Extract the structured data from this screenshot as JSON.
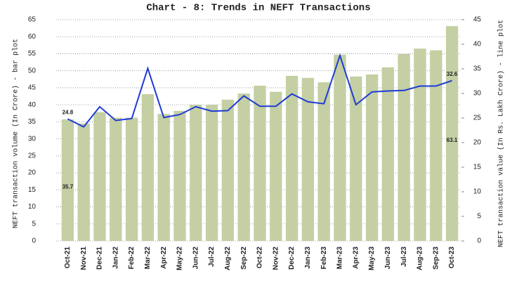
{
  "chart_data": {
    "type": "bar-line",
    "title": "Chart - 8: Trends in NEFT Transactions",
    "y_label": "NEFT transaction volume (In Crore) - bar plot",
    "y2_label": "NEFT transaction value (In Rs. Lakh Crore) - line plot",
    "categories": [
      "Oct-21",
      "Nov-21",
      "Dec-21",
      "Jan-22",
      "Feb-22",
      "Mar-22",
      "Apr-22",
      "May-22",
      "Jun-22",
      "Jul-22",
      "Aug-22",
      "Sep-22",
      "Oct-22",
      "Nov-22",
      "Dec-22",
      "Jan-23",
      "Feb-23",
      "Mar-23",
      "Apr-23",
      "May-23",
      "Jun-23",
      "Jul-23",
      "Aug-23",
      "Sep-23",
      "Oct-23"
    ],
    "series": [
      {
        "type": "bar",
        "axis": "y",
        "color": "#c4cfa3",
        "label_color": "#222222",
        "values": [
          35.7,
          34.5,
          37.8,
          36.2,
          36.2,
          43.1,
          37.3,
          38.2,
          40.0,
          40.0,
          41.5,
          43.3,
          45.6,
          43.8,
          48.5,
          47.9,
          46.6,
          54.7,
          48.3,
          48.9,
          51.0,
          54.9,
          56.5,
          56.0,
          63.1
        ]
      },
      {
        "type": "line",
        "axis": "y2",
        "color": "#1e3bd6",
        "label_color": "#1e3bd6",
        "values": [
          24.8,
          23.2,
          27.3,
          24.5,
          24.9,
          35.1,
          25.1,
          25.7,
          27.3,
          26.4,
          26.5,
          29.5,
          27.4,
          27.4,
          29.9,
          28.3,
          27.9,
          37.7,
          27.7,
          30.3,
          30.5,
          30.6,
          31.5,
          31.5,
          32.6
        ]
      }
    ],
    "label_points": "ends",
    "ylim": [
      0,
      65
    ],
    "yticks": [
      0,
      5,
      10,
      15,
      20,
      25,
      30,
      35,
      40,
      45,
      50,
      55,
      60,
      65
    ],
    "y2lim": [
      0,
      45
    ],
    "y2ticks": [
      0,
      5,
      10,
      15,
      20,
      25,
      30,
      35,
      40,
      45
    ],
    "grid": true
  }
}
